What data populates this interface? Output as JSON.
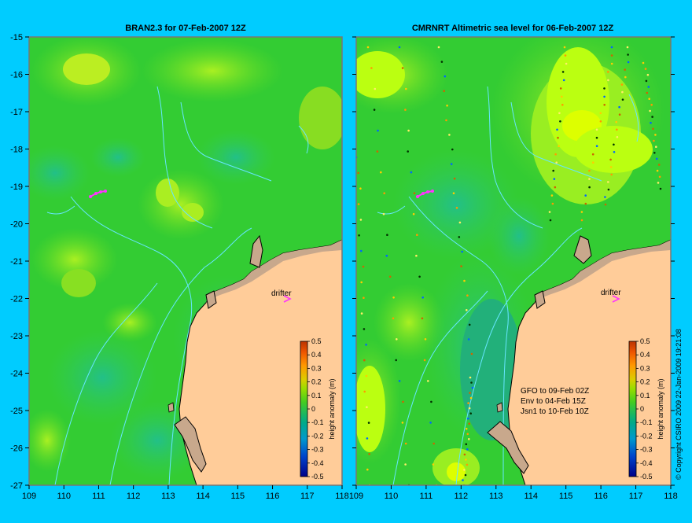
{
  "colors": {
    "background": "#00ccff",
    "land": "#ffcc99",
    "land_dark": "#c8a88c",
    "coast": "#000000",
    "contour": "#66e6ff",
    "drifter": "#ff33ff"
  },
  "axes": {
    "x_ticks": [
      "109",
      "110",
      "111",
      "112",
      "113",
      "114",
      "115",
      "116",
      "117",
      "118"
    ],
    "y_ticks": [
      "-15",
      "-16",
      "-17",
      "-18",
      "-19",
      "-20",
      "-21",
      "-22",
      "-23",
      "-24",
      "-25",
      "-26",
      "-27"
    ]
  },
  "panels": [
    {
      "title": "BRAN2.3 for 07-Feb-2007 12Z",
      "drifter_label": "drifter",
      "colorbar_label": "height anomaly (m)"
    },
    {
      "title": "CMRNRT Altimetric sea level  for 06-Feb-2007 12Z",
      "drifter_label": "drifter",
      "colorbar_label": "height anomaly (m)",
      "notes": [
        "GFO to 09-Feb 02Z",
        "Env to 04-Feb 15Z",
        "Jsn1 to 10-Feb 10Z"
      ]
    }
  ],
  "colorbar_ticks": [
    "0.5",
    "0.4",
    "0.3",
    "0.2",
    "0.1",
    "0",
    "-0.1",
    "-0.2",
    "-0.3",
    "-0.4",
    "-0.5"
  ],
  "colorbar_colors": [
    "#0000aa",
    "#0044dd",
    "#0099dd",
    "#00bbaa",
    "#22bb66",
    "#33cc44",
    "#44dd22",
    "#99ee22",
    "#ddee00",
    "#ffaa00",
    "#ff5500",
    "#cc3300"
  ],
  "copyright": "© Copyright CSIRO 2009   22-Jan-2009 19:21:08"
}
